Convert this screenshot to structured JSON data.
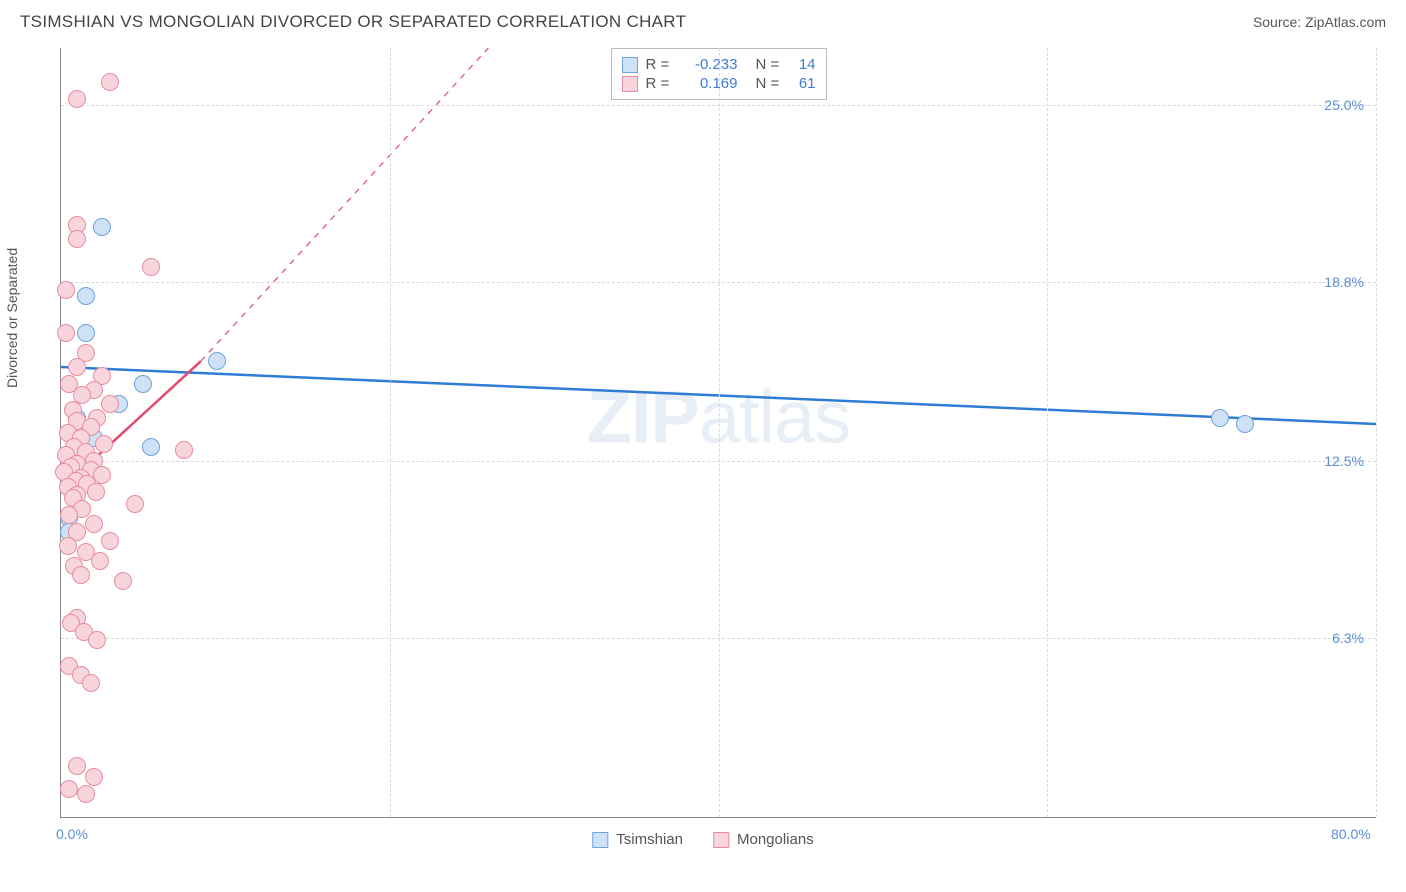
{
  "header": {
    "title": "TSIMSHIAN VS MONGOLIAN DIVORCED OR SEPARATED CORRELATION CHART",
    "source": "Source: ZipAtlas.com"
  },
  "watermark": {
    "bold": "ZIP",
    "rest": "atlas"
  },
  "chart": {
    "type": "scatter",
    "y_axis_title": "Divorced or Separated",
    "background_color": "#ffffff",
    "grid_color": "#d9d9d9",
    "axis_color": "#888888",
    "x_range": [
      0,
      80
    ],
    "y_range": [
      0,
      27
    ],
    "x_ticks": [
      {
        "value": 0,
        "label": "0.0%"
      },
      {
        "value": 80,
        "label": "80.0%"
      }
    ],
    "x_grid_values": [
      20,
      40,
      60,
      80
    ],
    "y_ticks": [
      {
        "value": 6.3,
        "label": "6.3%"
      },
      {
        "value": 12.5,
        "label": "12.5%"
      },
      {
        "value": 18.8,
        "label": "18.8%"
      },
      {
        "value": 25.0,
        "label": "25.0%"
      }
    ],
    "series": [
      {
        "name": "Tsimshian",
        "fill": "#cfe1f5",
        "stroke": "#6fa3dd",
        "marker_radius": 9,
        "line_color": "#2e7cd6",
        "line_width": 2.5,
        "dash": false,
        "stats": {
          "R": "-0.233",
          "N": "14"
        },
        "trend": {
          "x1": 0,
          "y1": 15.8,
          "x2": 80,
          "y2": 13.8
        },
        "points": [
          {
            "x": 2.5,
            "y": 20.7
          },
          {
            "x": 1.5,
            "y": 18.3
          },
          {
            "x": 1.5,
            "y": 17.0
          },
          {
            "x": 5.0,
            "y": 15.2
          },
          {
            "x": 9.5,
            "y": 16.0
          },
          {
            "x": 3.5,
            "y": 14.5
          },
          {
            "x": 1.0,
            "y": 14.0
          },
          {
            "x": 1.0,
            "y": 13.6
          },
          {
            "x": 2.0,
            "y": 13.3
          },
          {
            "x": 5.5,
            "y": 13.0
          },
          {
            "x": 0.5,
            "y": 10.5
          },
          {
            "x": 0.5,
            "y": 10.0
          },
          {
            "x": 70.5,
            "y": 14.0
          },
          {
            "x": 72.0,
            "y": 13.8
          }
        ]
      },
      {
        "name": "Mongolians",
        "fill": "#f8d5dd",
        "stroke": "#e98ba1",
        "marker_radius": 9,
        "line_color": "#e24a6e",
        "line_width": 2.5,
        "dash": true,
        "stats": {
          "R": "0.169",
          "N": "61"
        },
        "trend": {
          "x1": 0,
          "y1": 11.5,
          "x2": 8.5,
          "y2": 16.0
        },
        "trend_ext": {
          "x1": 8.5,
          "y1": 16.0,
          "x2": 26,
          "y2": 27
        },
        "points": [
          {
            "x": 1.0,
            "y": 25.2
          },
          {
            "x": 3.0,
            "y": 25.8
          },
          {
            "x": 1.0,
            "y": 20.8
          },
          {
            "x": 1.0,
            "y": 20.3
          },
          {
            "x": 5.5,
            "y": 19.3
          },
          {
            "x": 0.3,
            "y": 18.5
          },
          {
            "x": 0.3,
            "y": 17.0
          },
          {
            "x": 1.5,
            "y": 16.3
          },
          {
            "x": 1.0,
            "y": 15.8
          },
          {
            "x": 2.5,
            "y": 15.5
          },
          {
            "x": 0.5,
            "y": 15.2
          },
          {
            "x": 2.0,
            "y": 15.0
          },
          {
            "x": 1.3,
            "y": 14.8
          },
          {
            "x": 3.0,
            "y": 14.5
          },
          {
            "x": 0.7,
            "y": 14.3
          },
          {
            "x": 2.2,
            "y": 14.0
          },
          {
            "x": 1.0,
            "y": 13.9
          },
          {
            "x": 1.8,
            "y": 13.7
          },
          {
            "x": 0.4,
            "y": 13.5
          },
          {
            "x": 1.2,
            "y": 13.3
          },
          {
            "x": 2.6,
            "y": 13.1
          },
          {
            "x": 0.8,
            "y": 13.0
          },
          {
            "x": 7.5,
            "y": 12.9
          },
          {
            "x": 1.5,
            "y": 12.8
          },
          {
            "x": 0.3,
            "y": 12.7
          },
          {
            "x": 2.0,
            "y": 12.5
          },
          {
            "x": 1.0,
            "y": 12.4
          },
          {
            "x": 0.6,
            "y": 12.3
          },
          {
            "x": 1.8,
            "y": 12.2
          },
          {
            "x": 0.2,
            "y": 12.1
          },
          {
            "x": 2.5,
            "y": 12.0
          },
          {
            "x": 1.2,
            "y": 11.9
          },
          {
            "x": 0.9,
            "y": 11.8
          },
          {
            "x": 1.6,
            "y": 11.7
          },
          {
            "x": 0.4,
            "y": 11.6
          },
          {
            "x": 2.1,
            "y": 11.4
          },
          {
            "x": 1.0,
            "y": 11.3
          },
          {
            "x": 0.7,
            "y": 11.2
          },
          {
            "x": 4.5,
            "y": 11.0
          },
          {
            "x": 1.3,
            "y": 10.8
          },
          {
            "x": 0.5,
            "y": 10.6
          },
          {
            "x": 2.0,
            "y": 10.3
          },
          {
            "x": 1.0,
            "y": 10.0
          },
          {
            "x": 3.0,
            "y": 9.7
          },
          {
            "x": 0.4,
            "y": 9.5
          },
          {
            "x": 1.5,
            "y": 9.3
          },
          {
            "x": 2.4,
            "y": 9.0
          },
          {
            "x": 0.8,
            "y": 8.8
          },
          {
            "x": 1.2,
            "y": 8.5
          },
          {
            "x": 3.8,
            "y": 8.3
          },
          {
            "x": 1.0,
            "y": 7.0
          },
          {
            "x": 0.6,
            "y": 6.8
          },
          {
            "x": 1.4,
            "y": 6.5
          },
          {
            "x": 2.2,
            "y": 6.2
          },
          {
            "x": 0.5,
            "y": 5.3
          },
          {
            "x": 1.2,
            "y": 5.0
          },
          {
            "x": 1.8,
            "y": 4.7
          },
          {
            "x": 1.0,
            "y": 1.8
          },
          {
            "x": 2.0,
            "y": 1.4
          },
          {
            "x": 0.5,
            "y": 1.0
          },
          {
            "x": 1.5,
            "y": 0.8
          }
        ]
      }
    ],
    "legend": {
      "stat_labels": {
        "R": "R =",
        "N": "N ="
      }
    }
  }
}
